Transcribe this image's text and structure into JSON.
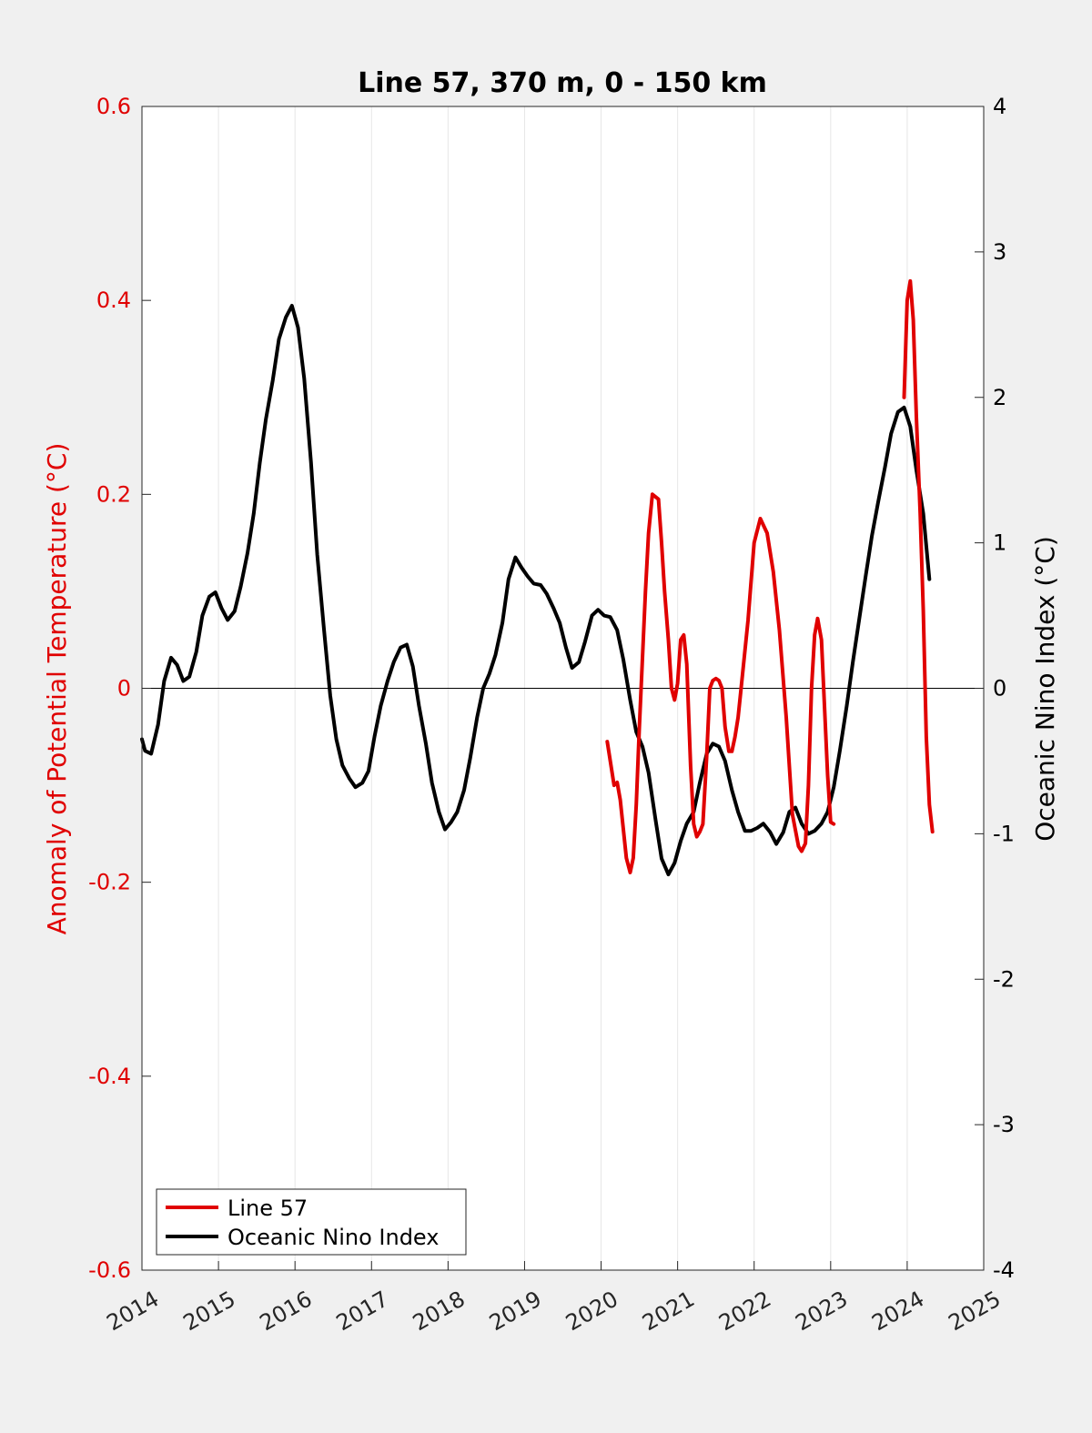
{
  "chart_data": {
    "type": "line",
    "title": "Line 57, 370 m, 0 - 150 km",
    "ylabel_left": "Anomaly of Potential Temperature (°C)",
    "ylabel_right": "Oceanic Nino Index (°C)",
    "xlim": [
      2014,
      2025
    ],
    "ylim_left": [
      -0.6,
      0.6
    ],
    "ylim_right": [
      -4,
      4
    ],
    "x_ticks": [
      "2014",
      "2015",
      "2016",
      "2017",
      "2018",
      "2019",
      "2020",
      "2021",
      "2022",
      "2023",
      "2024",
      "2025"
    ],
    "y_ticks_left": [
      "-0.6",
      "-0.4",
      "-0.2",
      "0",
      "0.2",
      "0.4",
      "0.6"
    ],
    "y_ticks_right": [
      "-4",
      "-3",
      "-2",
      "-1",
      "0",
      "1",
      "2",
      "3",
      "4"
    ],
    "vertical_grid": true,
    "zero_line": true,
    "legend_position": "bottom-left",
    "colors": {
      "line57": "#e00000",
      "oni": "#000000"
    },
    "series": [
      {
        "name": "Line 57",
        "axis": "left",
        "color": "#e00000",
        "x": [
          2020.08,
          2020.17,
          2020.21,
          2020.25,
          2020.33,
          2020.38,
          2020.42,
          2020.46,
          2020.5,
          2020.58,
          2020.62,
          2020.67,
          2020.75,
          2020.79,
          2020.83,
          2020.88,
          2020.92,
          2020.96,
          2021.0,
          2021.04,
          2021.08,
          2021.12,
          2021.17,
          2021.21,
          2021.25,
          2021.29,
          2021.33,
          2021.38,
          2021.42,
          2021.46,
          2021.5,
          2021.54,
          2021.58,
          2021.62,
          2021.67,
          2021.71,
          2021.75,
          2021.79,
          2021.83,
          2021.92,
          2022.0,
          2022.08,
          2022.17,
          2022.21,
          2022.25,
          2022.33,
          2022.42,
          2022.5,
          2022.58,
          2022.62,
          2022.67,
          2022.71,
          2022.75,
          2022.79,
          2022.83,
          2022.88,
          2022.92,
          2022.96,
          2023.0,
          2023.04,
          2023.96,
          2024.0,
          2024.04,
          2024.08,
          2024.12,
          2024.17,
          2024.21,
          2024.25,
          2024.29,
          2024.33
        ],
        "y": [
          -0.055,
          -0.1,
          -0.097,
          -0.115,
          -0.175,
          -0.19,
          -0.175,
          -0.12,
          -0.04,
          0.1,
          0.16,
          0.2,
          0.195,
          0.15,
          0.1,
          0.05,
          0.0,
          -0.012,
          0.005,
          0.05,
          0.055,
          0.025,
          -0.08,
          -0.14,
          -0.153,
          -0.148,
          -0.14,
          -0.07,
          0.0,
          0.008,
          0.01,
          0.008,
          0.0,
          -0.04,
          -0.065,
          -0.065,
          -0.05,
          -0.03,
          0.0,
          0.07,
          0.15,
          0.175,
          0.16,
          0.14,
          0.12,
          0.06,
          -0.03,
          -0.13,
          -0.163,
          -0.168,
          -0.16,
          -0.1,
          0.0,
          0.055,
          0.072,
          0.05,
          -0.02,
          -0.09,
          -0.138,
          -0.14,
          0.3,
          0.4,
          0.42,
          0.38,
          0.28,
          0.18,
          0.08,
          -0.05,
          -0.12,
          -0.148
        ],
        "segments": [
          [
            0,
            59
          ],
          [
            60,
            69
          ]
        ]
      },
      {
        "name": "Oceanic Nino Index",
        "axis": "right",
        "color": "#000000",
        "x": [
          2014.0,
          2014.04,
          2014.12,
          2014.21,
          2014.29,
          2014.38,
          2014.46,
          2014.54,
          2014.62,
          2014.71,
          2014.79,
          2014.88,
          2014.96,
          2015.04,
          2015.12,
          2015.21,
          2015.29,
          2015.38,
          2015.46,
          2015.54,
          2015.62,
          2015.71,
          2015.79,
          2015.88,
          2015.96,
          2016.04,
          2016.12,
          2016.21,
          2016.29,
          2016.38,
          2016.46,
          2016.54,
          2016.62,
          2016.71,
          2016.79,
          2016.88,
          2016.96,
          2017.04,
          2017.12,
          2017.21,
          2017.29,
          2017.38,
          2017.46,
          2017.54,
          2017.62,
          2017.71,
          2017.79,
          2017.88,
          2017.96,
          2018.04,
          2018.12,
          2018.21,
          2018.29,
          2018.38,
          2018.46,
          2018.54,
          2018.62,
          2018.71,
          2018.79,
          2018.88,
          2018.96,
          2019.04,
          2019.12,
          2019.21,
          2019.29,
          2019.38,
          2019.46,
          2019.54,
          2019.62,
          2019.71,
          2019.79,
          2019.88,
          2019.96,
          2020.04,
          2020.12,
          2020.21,
          2020.29,
          2020.38,
          2020.46,
          2020.54,
          2020.62,
          2020.71,
          2020.79,
          2020.88,
          2020.96,
          2021.04,
          2021.12,
          2021.21,
          2021.29,
          2021.38,
          2021.46,
          2021.54,
          2021.62,
          2021.71,
          2021.79,
          2021.88,
          2021.96,
          2022.04,
          2022.12,
          2022.21,
          2022.29,
          2022.38,
          2022.46,
          2022.54,
          2022.62,
          2022.71,
          2022.79,
          2022.88,
          2022.96,
          2023.04,
          2023.12,
          2023.21,
          2023.29,
          2023.38,
          2023.46,
          2023.54,
          2023.62,
          2023.71,
          2023.79,
          2023.88,
          2023.96,
          2024.04,
          2024.12,
          2024.21,
          2024.29
        ],
        "y": [
          -0.35,
          -0.43,
          -0.45,
          -0.25,
          0.05,
          0.21,
          0.16,
          0.05,
          0.08,
          0.25,
          0.5,
          0.63,
          0.66,
          0.55,
          0.47,
          0.53,
          0.7,
          0.93,
          1.2,
          1.55,
          1.85,
          2.12,
          2.4,
          2.55,
          2.63,
          2.48,
          2.13,
          1.55,
          0.92,
          0.4,
          -0.05,
          -0.35,
          -0.53,
          -0.62,
          -0.68,
          -0.65,
          -0.57,
          -0.33,
          -0.12,
          0.05,
          0.18,
          0.28,
          0.3,
          0.15,
          -0.12,
          -0.38,
          -0.65,
          -0.85,
          -0.97,
          -0.92,
          -0.85,
          -0.7,
          -0.48,
          -0.2,
          0.0,
          0.1,
          0.23,
          0.45,
          0.75,
          0.9,
          0.83,
          0.77,
          0.72,
          0.71,
          0.65,
          0.55,
          0.45,
          0.28,
          0.14,
          0.18,
          0.32,
          0.5,
          0.54,
          0.5,
          0.49,
          0.4,
          0.2,
          -0.08,
          -0.3,
          -0.4,
          -0.58,
          -0.9,
          -1.17,
          -1.28,
          -1.2,
          -1.05,
          -0.93,
          -0.85,
          -0.65,
          -0.45,
          -0.38,
          -0.4,
          -0.5,
          -0.7,
          -0.85,
          -0.98,
          -0.98,
          -0.96,
          -0.93,
          -0.99,
          -1.07,
          -0.99,
          -0.85,
          -0.82,
          -0.93,
          -1.0,
          -0.98,
          -0.93,
          -0.85,
          -0.68,
          -0.43,
          -0.12,
          0.18,
          0.5,
          0.78,
          1.05,
          1.28,
          1.52,
          1.75,
          1.9,
          1.93,
          1.8,
          1.5,
          1.2,
          0.75
        ]
      }
    ]
  }
}
